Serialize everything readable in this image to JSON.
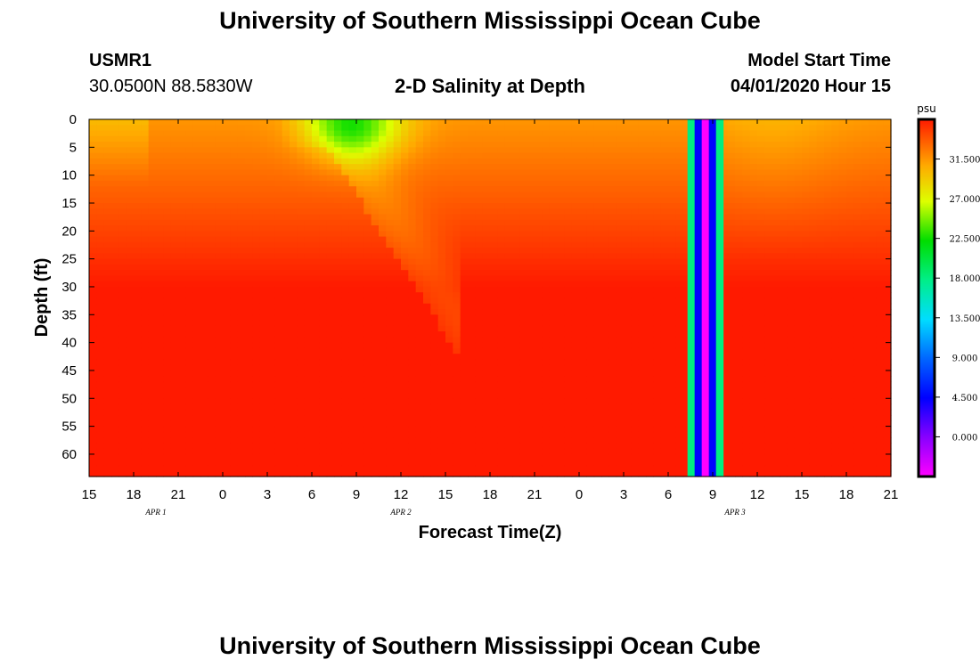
{
  "header": {
    "title": "University of Southern Mississippi Ocean Cube",
    "station_id": "USMR1",
    "coordinates": "30.0500N 88.5830W",
    "subtitle": "2-D Salinity at Depth",
    "model_start_label": "Model Start Time",
    "model_start_value": "04/01/2020 Hour 15"
  },
  "footer": {
    "title": "University of Southern Mississippi Ocean Cube"
  },
  "chart_data": {
    "type": "heatmap",
    "title": "2-D Salinity at Depth",
    "xlabel": "Forecast Time(Z)",
    "ylabel": "Depth (ft)",
    "x_range_hours": [
      0,
      54
    ],
    "x_ticks": [
      {
        "h": 0,
        "label": "15"
      },
      {
        "h": 3,
        "label": "18"
      },
      {
        "h": 6,
        "label": "21"
      },
      {
        "h": 9,
        "label": "0"
      },
      {
        "h": 12,
        "label": "3"
      },
      {
        "h": 15,
        "label": "6"
      },
      {
        "h": 18,
        "label": "9"
      },
      {
        "h": 21,
        "label": "12"
      },
      {
        "h": 24,
        "label": "15"
      },
      {
        "h": 27,
        "label": "18"
      },
      {
        "h": 30,
        "label": "21"
      },
      {
        "h": 33,
        "label": "0"
      },
      {
        "h": 36,
        "label": "3"
      },
      {
        "h": 39,
        "label": "6"
      },
      {
        "h": 42,
        "label": "9"
      },
      {
        "h": 45,
        "label": "12"
      },
      {
        "h": 48,
        "label": "15"
      },
      {
        "h": 51,
        "label": "18"
      },
      {
        "h": 54,
        "label": "21"
      }
    ],
    "date_labels": [
      {
        "h": 4.5,
        "label": "APR 1"
      },
      {
        "h": 21,
        "label": "APR 2"
      },
      {
        "h": 43.5,
        "label": "APR 3"
      }
    ],
    "y_range_ft": [
      0,
      64
    ],
    "y_ticks": [
      0,
      5,
      10,
      15,
      20,
      25,
      30,
      35,
      40,
      45,
      50,
      55,
      60
    ],
    "colorbar": {
      "unit": "psu",
      "range": [
        -4.5,
        36
      ],
      "ticks": [
        "31.500",
        "27.000",
        "22.500",
        "18.000",
        "13.500",
        "9.000",
        "4.500",
        "0.000"
      ]
    },
    "salinity_fields": {
      "surface_background_psu": 31.5,
      "deep_background_psu": 36,
      "fresh_plume": {
        "center_hour": 18,
        "center_depth_ft": 1,
        "min_psu": 25.5
      },
      "missing_data_band": {
        "start_hour": 40.3,
        "end_hour": 42.7,
        "band_psu": [
          18,
          4.5,
          -4.5,
          4.5,
          18
        ]
      }
    }
  }
}
